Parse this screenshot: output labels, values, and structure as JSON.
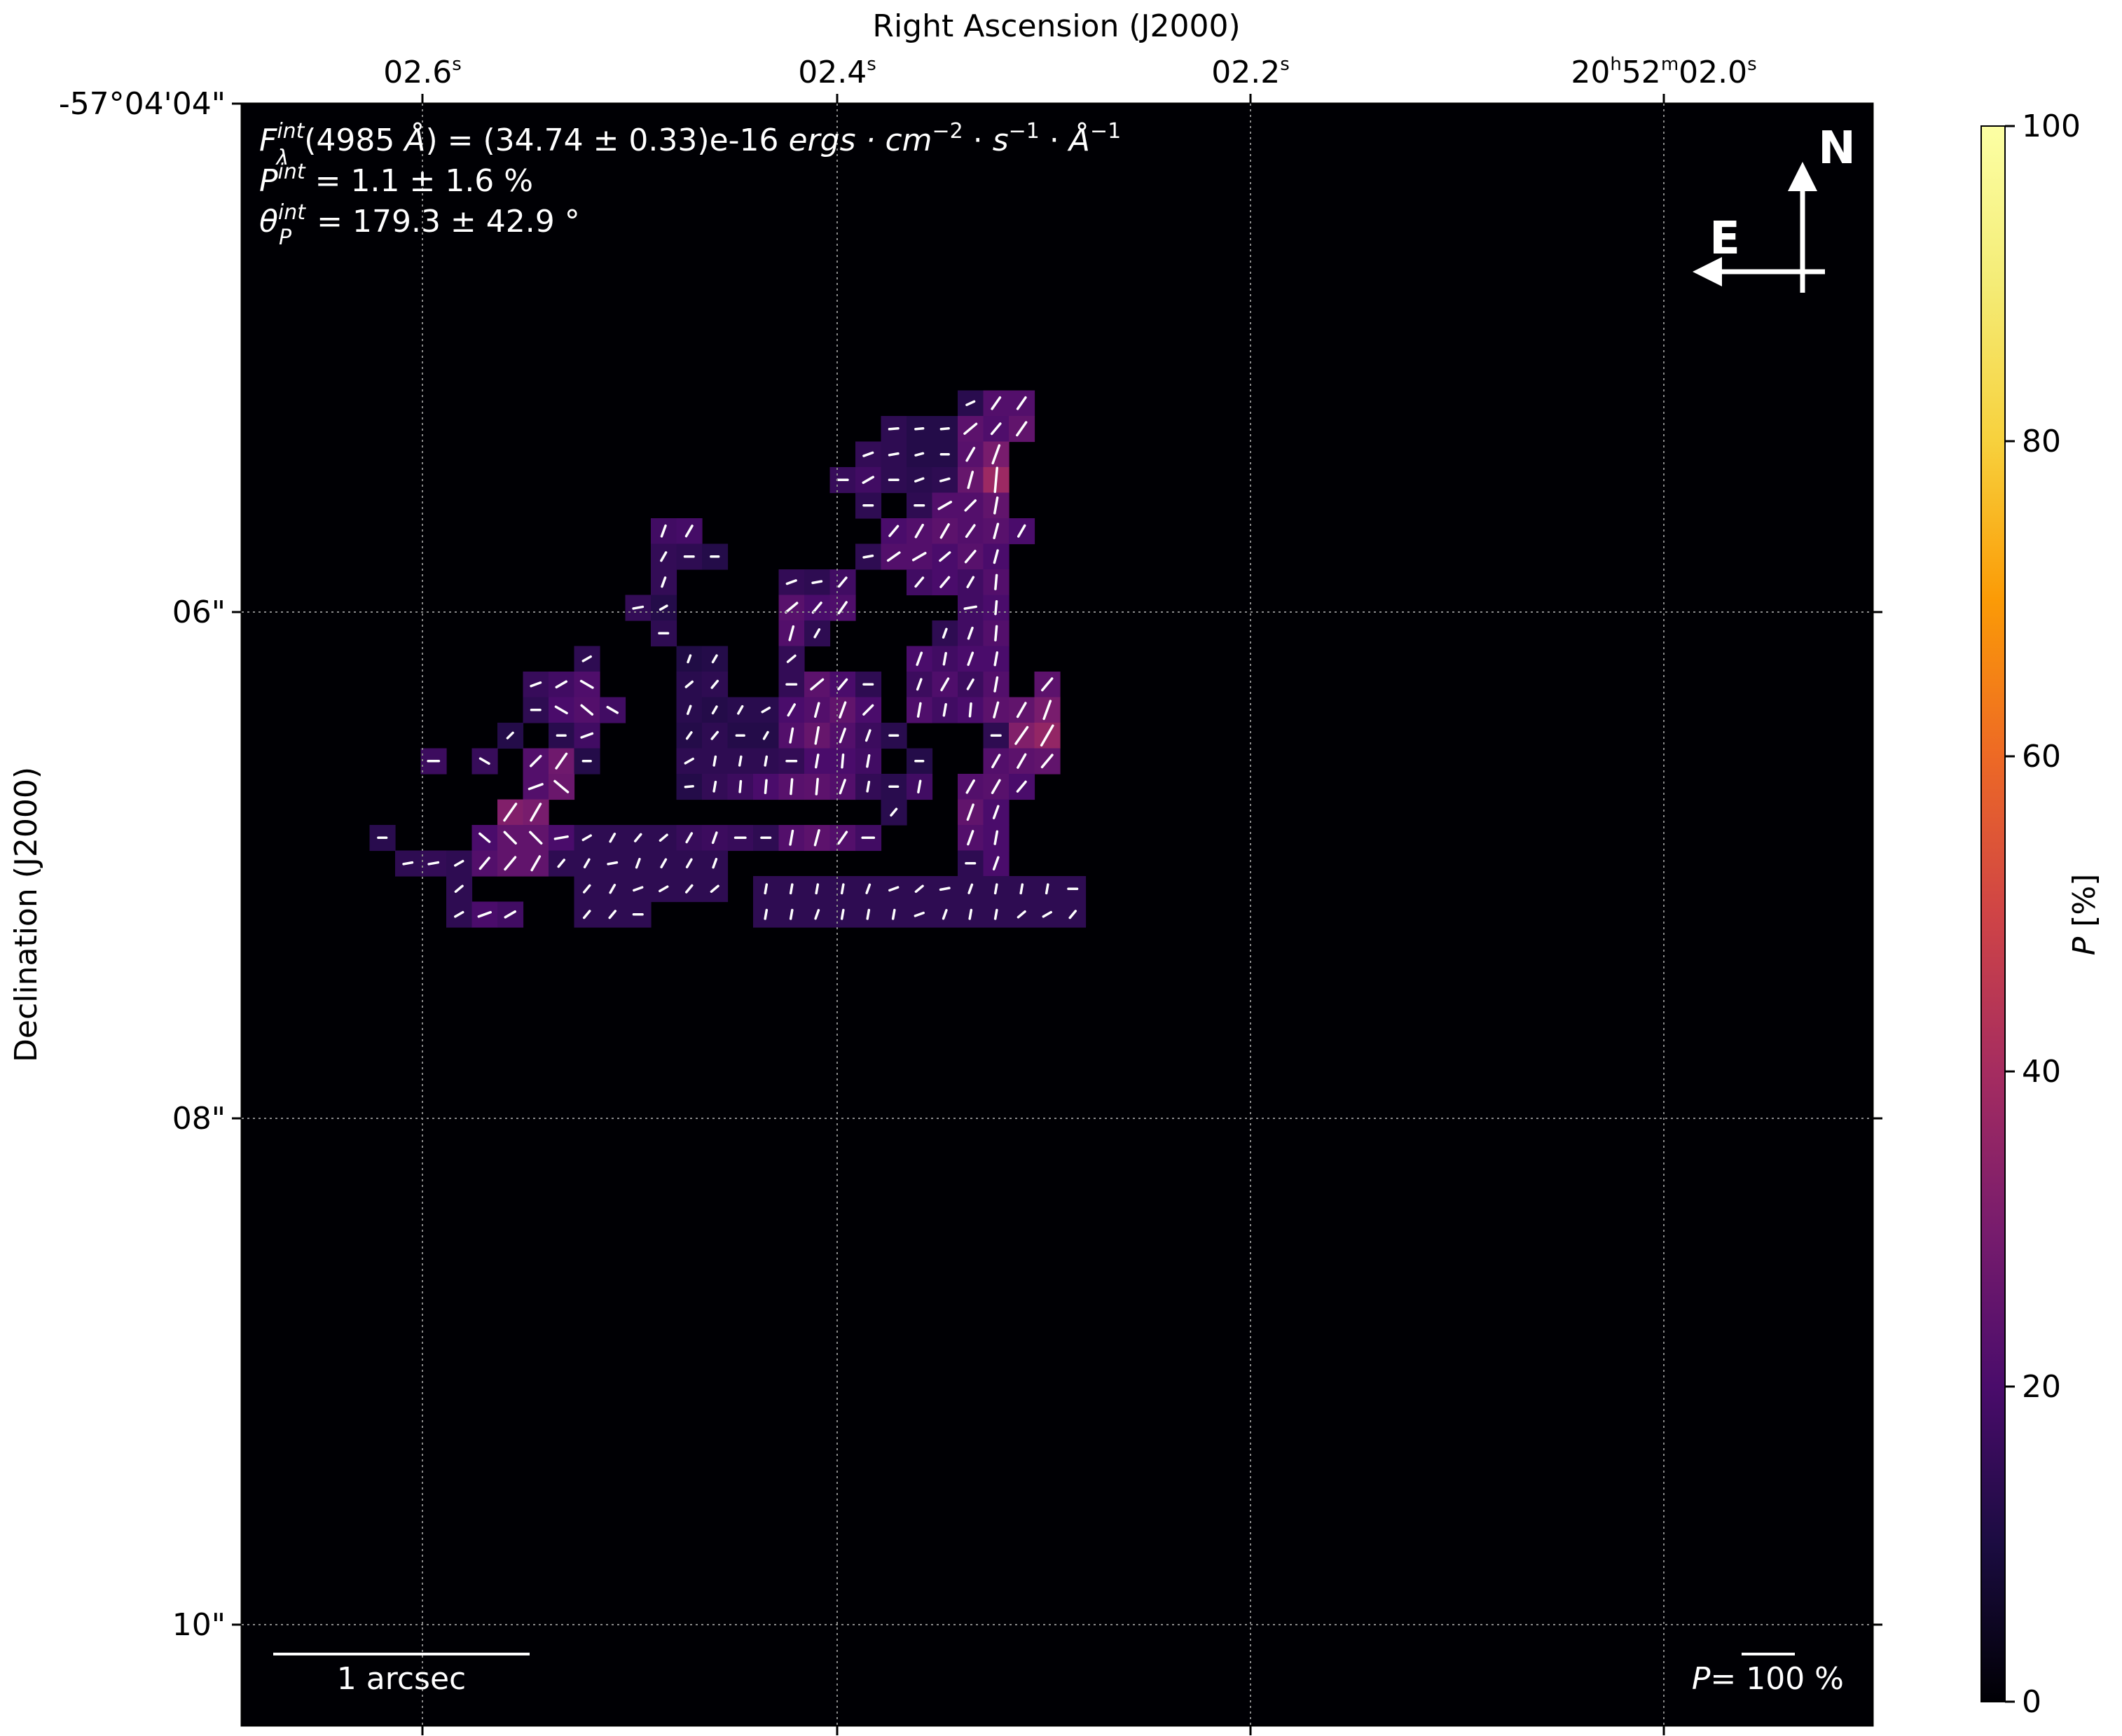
{
  "chart_data": {
    "type": "heatmap",
    "title_lines": [
      "F_λ^int(4985 Å) = (34.74 ± 0.33)e-16 ergs·cm^-2·s^-1·Å^-1",
      "P^int = 1.1 ± 1.6 %",
      "θ_P^int = 179.3 ± 42.9 °"
    ],
    "xlabel": "Right Ascension (J2000)",
    "ylabel": "Declination (J2000)",
    "x_ticks": [
      "02.6s",
      "02.4s",
      "02.2s",
      "20h52m02.0s"
    ],
    "y_ticks": [
      "-57°04'04\"",
      "06\"",
      "08\"",
      "10\""
    ],
    "colorbar": {
      "label": "P [%]",
      "colormap": "inferno",
      "range": [
        0,
        100
      ],
      "ticks": [
        "0",
        "20",
        "40",
        "60",
        "80",
        "100"
      ]
    },
    "compass": {
      "north": "N",
      "east": "E"
    },
    "scale_bar_label": "1 arcsec",
    "vector_legend": "P= 100 %",
    "grid": true,
    "background_color": "#000004",
    "vector_color": "#ffffff",
    "pixels": [
      [
        28,
        3,
        13,
        -25
      ],
      [
        29,
        3,
        22,
        -55
      ],
      [
        30,
        3,
        22,
        -55
      ],
      [
        25,
        4,
        14,
        -5
      ],
      [
        26,
        4,
        12,
        -5
      ],
      [
        27,
        4,
        12,
        -5
      ],
      [
        28,
        4,
        24,
        -40
      ],
      [
        29,
        4,
        21,
        -50
      ],
      [
        30,
        4,
        25,
        -55
      ],
      [
        24,
        5,
        15,
        -20
      ],
      [
        25,
        5,
        14,
        -10
      ],
      [
        26,
        5,
        12,
        -15
      ],
      [
        27,
        5,
        12,
        0
      ],
      [
        28,
        5,
        23,
        -60
      ],
      [
        29,
        5,
        30,
        -70
      ],
      [
        23,
        6,
        16,
        0
      ],
      [
        24,
        6,
        18,
        -30
      ],
      [
        25,
        6,
        14,
        0
      ],
      [
        26,
        6,
        13,
        -20
      ],
      [
        27,
        6,
        14,
        -15
      ],
      [
        28,
        6,
        26,
        -75
      ],
      [
        29,
        6,
        38,
        -85
      ],
      [
        24,
        7,
        14,
        0
      ],
      [
        26,
        7,
        14,
        0
      ],
      [
        27,
        7,
        22,
        -30
      ],
      [
        28,
        7,
        22,
        -45
      ],
      [
        29,
        7,
        25,
        -80
      ],
      [
        16,
        8,
        18,
        -70
      ],
      [
        17,
        8,
        19,
        -60
      ],
      [
        25,
        8,
        20,
        -50
      ],
      [
        26,
        8,
        22,
        -60
      ],
      [
        27,
        8,
        24,
        -60
      ],
      [
        28,
        8,
        22,
        -55
      ],
      [
        29,
        8,
        23,
        -75
      ],
      [
        30,
        8,
        20,
        -60
      ],
      [
        16,
        9,
        15,
        -60
      ],
      [
        17,
        9,
        14,
        0
      ],
      [
        18,
        9,
        12,
        0
      ],
      [
        24,
        9,
        14,
        -10
      ],
      [
        25,
        9,
        22,
        -35
      ],
      [
        26,
        9,
        22,
        -30
      ],
      [
        27,
        9,
        20,
        -40
      ],
      [
        28,
        9,
        23,
        -50
      ],
      [
        29,
        9,
        20,
        -75
      ],
      [
        16,
        10,
        15,
        -70
      ],
      [
        21,
        10,
        15,
        -20
      ],
      [
        22,
        10,
        14,
        -10
      ],
      [
        23,
        10,
        18,
        -50
      ],
      [
        26,
        10,
        18,
        -50
      ],
      [
        27,
        10,
        20,
        -50
      ],
      [
        28,
        10,
        18,
        -60
      ],
      [
        29,
        10,
        22,
        -85
      ],
      [
        15,
        11,
        15,
        -10
      ],
      [
        16,
        11,
        12,
        -30
      ],
      [
        21,
        11,
        23,
        -40
      ],
      [
        22,
        11,
        20,
        -50
      ],
      [
        23,
        11,
        21,
        -55
      ],
      [
        28,
        11,
        18,
        -10
      ],
      [
        29,
        11,
        20,
        -85
      ],
      [
        16,
        12,
        14,
        0
      ],
      [
        21,
        12,
        22,
        -75
      ],
      [
        22,
        12,
        14,
        -60
      ],
      [
        27,
        12,
        14,
        -70
      ],
      [
        28,
        12,
        18,
        -70
      ],
      [
        29,
        12,
        22,
        -85
      ],
      [
        13,
        13,
        14,
        -30
      ],
      [
        17,
        13,
        11,
        -70
      ],
      [
        18,
        13,
        12,
        -60
      ],
      [
        21,
        13,
        15,
        -40
      ],
      [
        26,
        13,
        20,
        -70
      ],
      [
        27,
        13,
        18,
        -80
      ],
      [
        28,
        13,
        20,
        -70
      ],
      [
        29,
        13,
        20,
        -80
      ],
      [
        11,
        14,
        16,
        -20
      ],
      [
        12,
        14,
        18,
        -30
      ],
      [
        13,
        14,
        21,
        30
      ],
      [
        17,
        14,
        13,
        -40
      ],
      [
        18,
        14,
        14,
        -50
      ],
      [
        21,
        14,
        15,
        0
      ],
      [
        22,
        14,
        24,
        -40
      ],
      [
        23,
        14,
        20,
        -50
      ],
      [
        24,
        14,
        14,
        0
      ],
      [
        26,
        14,
        17,
        -70
      ],
      [
        27,
        14,
        21,
        -60
      ],
      [
        28,
        14,
        17,
        -60
      ],
      [
        29,
        14,
        22,
        -80
      ],
      [
        31,
        14,
        24,
        -50
      ],
      [
        11,
        15,
        14,
        0
      ],
      [
        12,
        15,
        20,
        30
      ],
      [
        13,
        15,
        22,
        40
      ],
      [
        14,
        15,
        18,
        30
      ],
      [
        17,
        15,
        13,
        -70
      ],
      [
        18,
        15,
        12,
        -60
      ],
      [
        19,
        15,
        13,
        -60
      ],
      [
        20,
        15,
        13,
        -30
      ],
      [
        21,
        15,
        20,
        -60
      ],
      [
        22,
        15,
        22,
        -75
      ],
      [
        23,
        15,
        25,
        -70
      ],
      [
        24,
        15,
        20,
        -45
      ],
      [
        26,
        15,
        21,
        -80
      ],
      [
        27,
        15,
        18,
        -80
      ],
      [
        28,
        15,
        20,
        -85
      ],
      [
        29,
        15,
        24,
        -75
      ],
      [
        30,
        15,
        25,
        -60
      ],
      [
        31,
        15,
        30,
        -70
      ],
      [
        10,
        16,
        12,
        -45
      ],
      [
        12,
        16,
        13,
        0
      ],
      [
        13,
        16,
        18,
        -20
      ],
      [
        17,
        16,
        12,
        -55
      ],
      [
        18,
        16,
        14,
        -50
      ],
      [
        19,
        16,
        12,
        0
      ],
      [
        20,
        16,
        12,
        -60
      ],
      [
        21,
        16,
        22,
        -80
      ],
      [
        22,
        16,
        26,
        -80
      ],
      [
        23,
        16,
        22,
        -70
      ],
      [
        24,
        16,
        17,
        -70
      ],
      [
        25,
        16,
        13,
        0
      ],
      [
        29,
        16,
        14,
        0
      ],
      [
        30,
        16,
        32,
        -55
      ],
      [
        31,
        16,
        36,
        -60
      ],
      [
        7,
        17,
        17,
        0
      ],
      [
        9,
        17,
        16,
        30
      ],
      [
        11,
        17,
        22,
        -45
      ],
      [
        12,
        17,
        28,
        -55
      ],
      [
        13,
        17,
        12,
        0
      ],
      [
        17,
        17,
        14,
        -30
      ],
      [
        18,
        17,
        14,
        -80
      ],
      [
        19,
        17,
        14,
        -80
      ],
      [
        20,
        17,
        14,
        -80
      ],
      [
        21,
        17,
        15,
        0
      ],
      [
        22,
        17,
        20,
        -80
      ],
      [
        23,
        17,
        20,
        -85
      ],
      [
        24,
        17,
        18,
        -80
      ],
      [
        26,
        17,
        12,
        0
      ],
      [
        29,
        17,
        22,
        -60
      ],
      [
        30,
        17,
        24,
        -60
      ],
      [
        31,
        17,
        25,
        -50
      ],
      [
        11,
        18,
        22,
        -20
      ],
      [
        12,
        18,
        27,
        40
      ],
      [
        17,
        18,
        12,
        -5
      ],
      [
        18,
        18,
        15,
        -80
      ],
      [
        19,
        18,
        17,
        -85
      ],
      [
        20,
        18,
        20,
        -85
      ],
      [
        21,
        18,
        23,
        -85
      ],
      [
        22,
        18,
        24,
        -85
      ],
      [
        23,
        18,
        22,
        -70
      ],
      [
        24,
        18,
        15,
        -80
      ],
      [
        25,
        18,
        13,
        0
      ],
      [
        26,
        18,
        18,
        -80
      ],
      [
        28,
        18,
        22,
        -60
      ],
      [
        29,
        18,
        23,
        -60
      ],
      [
        30,
        18,
        20,
        -50
      ],
      [
        10,
        19,
        32,
        -55
      ],
      [
        11,
        19,
        30,
        -60
      ],
      [
        25,
        19,
        13,
        -50
      ],
      [
        28,
        19,
        25,
        -70
      ],
      [
        29,
        19,
        20,
        -70
      ],
      [
        5,
        20,
        13,
        0
      ],
      [
        9,
        20,
        20,
        40
      ],
      [
        10,
        20,
        25,
        45
      ],
      [
        11,
        20,
        25,
        45
      ],
      [
        12,
        20,
        20,
        -10
      ],
      [
        13,
        20,
        14,
        -30
      ],
      [
        14,
        20,
        14,
        -60
      ],
      [
        15,
        20,
        14,
        -50
      ],
      [
        16,
        20,
        14,
        -40
      ],
      [
        17,
        20,
        16,
        -60
      ],
      [
        18,
        20,
        17,
        -70
      ],
      [
        19,
        20,
        16,
        0
      ],
      [
        20,
        20,
        14,
        0
      ],
      [
        21,
        20,
        22,
        -80
      ],
      [
        22,
        20,
        24,
        -75
      ],
      [
        23,
        20,
        22,
        -55
      ],
      [
        24,
        20,
        18,
        0
      ],
      [
        28,
        20,
        22,
        -70
      ],
      [
        29,
        20,
        20,
        -80
      ],
      [
        6,
        21,
        14,
        -10
      ],
      [
        7,
        21,
        15,
        -10
      ],
      [
        8,
        21,
        14,
        -30
      ],
      [
        9,
        21,
        22,
        -50
      ],
      [
        10,
        21,
        25,
        -50
      ],
      [
        11,
        21,
        25,
        -60
      ],
      [
        12,
        21,
        14,
        -50
      ],
      [
        13,
        21,
        14,
        -60
      ],
      [
        14,
        21,
        14,
        -10
      ],
      [
        15,
        21,
        14,
        -70
      ],
      [
        16,
        21,
        14,
        -60
      ],
      [
        17,
        21,
        14,
        -60
      ],
      [
        18,
        21,
        14,
        -70
      ],
      [
        28,
        21,
        14,
        0
      ],
      [
        29,
        21,
        20,
        -70
      ],
      [
        8,
        22,
        14,
        -40
      ],
      [
        13,
        22,
        14,
        -50
      ],
      [
        14,
        22,
        14,
        -60
      ],
      [
        15,
        22,
        14,
        -20
      ],
      [
        16,
        22,
        14,
        -30
      ],
      [
        17,
        22,
        14,
        -50
      ],
      [
        18,
        22,
        14,
        -40
      ],
      [
        20,
        22,
        14,
        -80
      ],
      [
        21,
        22,
        14,
        -80
      ],
      [
        22,
        22,
        14,
        -80
      ],
      [
        23,
        22,
        14,
        -80
      ],
      [
        24,
        22,
        14,
        -70
      ],
      [
        25,
        22,
        14,
        -20
      ],
      [
        26,
        22,
        14,
        -40
      ],
      [
        27,
        22,
        14,
        -10
      ],
      [
        28,
        22,
        14,
        -70
      ],
      [
        29,
        22,
        14,
        -80
      ],
      [
        30,
        22,
        14,
        -80
      ],
      [
        31,
        22,
        14,
        -80
      ],
      [
        32,
        22,
        14,
        0
      ],
      [
        8,
        23,
        14,
        -30
      ],
      [
        9,
        23,
        20,
        -20
      ],
      [
        10,
        23,
        18,
        -30
      ],
      [
        13,
        23,
        14,
        -50
      ],
      [
        14,
        23,
        14,
        -50
      ],
      [
        15,
        23,
        14,
        0
      ],
      [
        20,
        23,
        14,
        -80
      ],
      [
        21,
        23,
        14,
        -80
      ],
      [
        22,
        23,
        14,
        -70
      ],
      [
        23,
        23,
        14,
        -80
      ],
      [
        24,
        23,
        14,
        -80
      ],
      [
        25,
        23,
        14,
        -80
      ],
      [
        26,
        23,
        14,
        -20
      ],
      [
        27,
        23,
        14,
        -70
      ],
      [
        28,
        23,
        14,
        -80
      ],
      [
        29,
        23,
        14,
        -80
      ],
      [
        30,
        23,
        14,
        -40
      ],
      [
        31,
        23,
        14,
        -30
      ],
      [
        32,
        23,
        14,
        -50
      ]
    ]
  }
}
